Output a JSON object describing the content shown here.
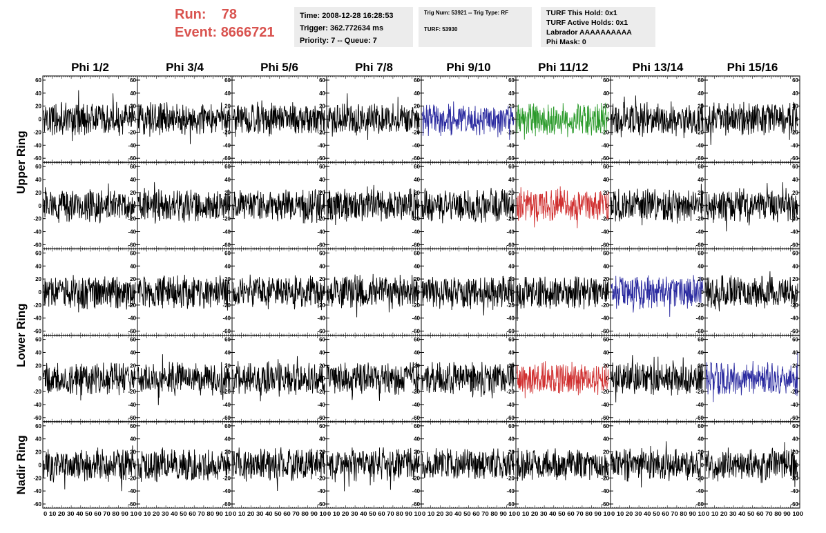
{
  "header": {
    "run_label": "Run:",
    "run_value": "78",
    "event_label": "Event:",
    "event_value": "8666721",
    "time_box": [
      "Time: 2008-12-28 16:28:53",
      "Trigger: 362.772634 ms",
      "Priority: 7 -- Queue: 7"
    ],
    "trig_box": [
      "Trig Num: 53921 -- Trig Type: RF",
      "",
      "TURF: 53930"
    ],
    "turf_box": [
      "TURF This Hold: 0x1",
      "TURF Active Holds: 0x1",
      "Labrador AAAAAAAAAA",
      "Phi Mask: 0"
    ]
  },
  "colors": {
    "default": "#000000",
    "blue": "#2b2ba0",
    "green": "#2a9a2a",
    "red": "#d03030"
  },
  "chart_data": {
    "type": "line",
    "columns": [
      "Phi 1/2",
      "Phi 3/4",
      "Phi 5/6",
      "Phi 7/8",
      "Phi 9/10",
      "Phi 11/12",
      "Phi 13/14",
      "Phi 15/16"
    ],
    "ring_labels": [
      "Upper Ring",
      "Lower Ring",
      "Nadir Ring"
    ],
    "rows": 5,
    "xlim": [
      0,
      100
    ],
    "ylim": [
      -60,
      60
    ],
    "yticks": [
      60,
      40,
      20,
      0,
      -20,
      -40,
      -60
    ],
    "xtick_labels": [
      "0",
      "10",
      "20",
      "30",
      "40",
      "50",
      "60",
      "70",
      "80",
      "90",
      "100"
    ],
    "bottom_axis_text": [
      "0 10 20 30 40 50 60 70 80 90 10",
      "0 10 20 30 40 50 60 70 80 90 10",
      "0 10 20 30 40 50 60 70 80 90 10",
      "0 10 20 30 40 50 60 70 80 90 10",
      "0 10 20 30 40 50 60 70 80 90 10",
      "0 10 20 30 40 50 60 70 80 90 10",
      "0 10 20 30 40 50 60 70 80 90 10",
      "0 10 20 30 40 50 60 70 80 90 100"
    ],
    "samples_per_trace": 260,
    "highlighted": [
      {
        "row": 0,
        "col": 4,
        "color": "blue"
      },
      {
        "row": 0,
        "col": 5,
        "color": "green"
      },
      {
        "row": 1,
        "col": 5,
        "color": "red"
      },
      {
        "row": 2,
        "col": 6,
        "color": "blue"
      },
      {
        "row": 3,
        "col": 5,
        "color": "red"
      },
      {
        "row": 3,
        "col": 7,
        "color": "blue"
      }
    ],
    "amplitude_note": "noise traces roughly within -40..30 mV"
  }
}
